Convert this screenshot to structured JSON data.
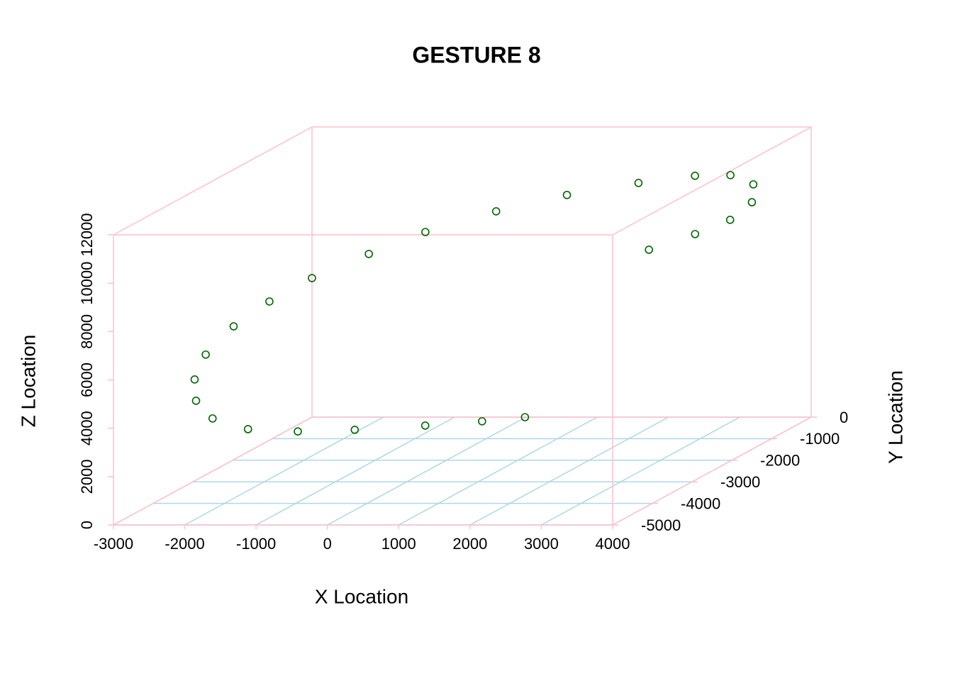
{
  "chart_data": {
    "type": "scatter3d",
    "title": "GESTURE 8",
    "xlabel": "X Location",
    "ylabel": "Y Location",
    "zlabel": "Z Location",
    "x": [
      1100,
      610,
      -20,
      -730,
      -1250,
      -1670,
      -2000,
      -2120,
      -2140,
      -2040,
      -1760,
      -1370,
      -940,
      -310,
      260,
      1030,
      1800,
      2580,
      3150,
      3480,
      3690,
      3670,
      3420,
      3040,
      2560
    ],
    "y": [
      -2000,
      -2200,
      -2500,
      -3000,
      -3500,
      -4000,
      -4300,
      -4500,
      -4500,
      -4400,
      -4200,
      -4000,
      -3700,
      -3400,
      -3000,
      -2600,
      -2200,
      -1800,
      -1400,
      -1100,
      -900,
      -900,
      -1000,
      -1200,
      -1500
    ],
    "z": [
      1780,
      1790,
      1880,
      2150,
      2530,
      3070,
      3780,
      4690,
      5570,
      6510,
      7500,
      8350,
      9050,
      9780,
      10330,
      10830,
      11150,
      11290,
      11230,
      10990,
      10430,
      9690,
      9050,
      8640,
      8260
    ],
    "color": "#006400",
    "xlim": [
      -3000,
      4000
    ],
    "ylim": [
      -5000,
      0
    ],
    "zlim": [
      0,
      12000
    ],
    "xticks": [
      -3000,
      -2000,
      -1000,
      0,
      1000,
      2000,
      3000,
      4000
    ],
    "yticks": [
      -5000,
      -4000,
      -3000,
      -2000,
      -1000,
      0
    ],
    "zticks": [
      0,
      2000,
      4000,
      6000,
      8000,
      10000,
      12000
    ],
    "grid": true,
    "grid_color": "#add8e6",
    "box_color": "#ffc0cb"
  }
}
